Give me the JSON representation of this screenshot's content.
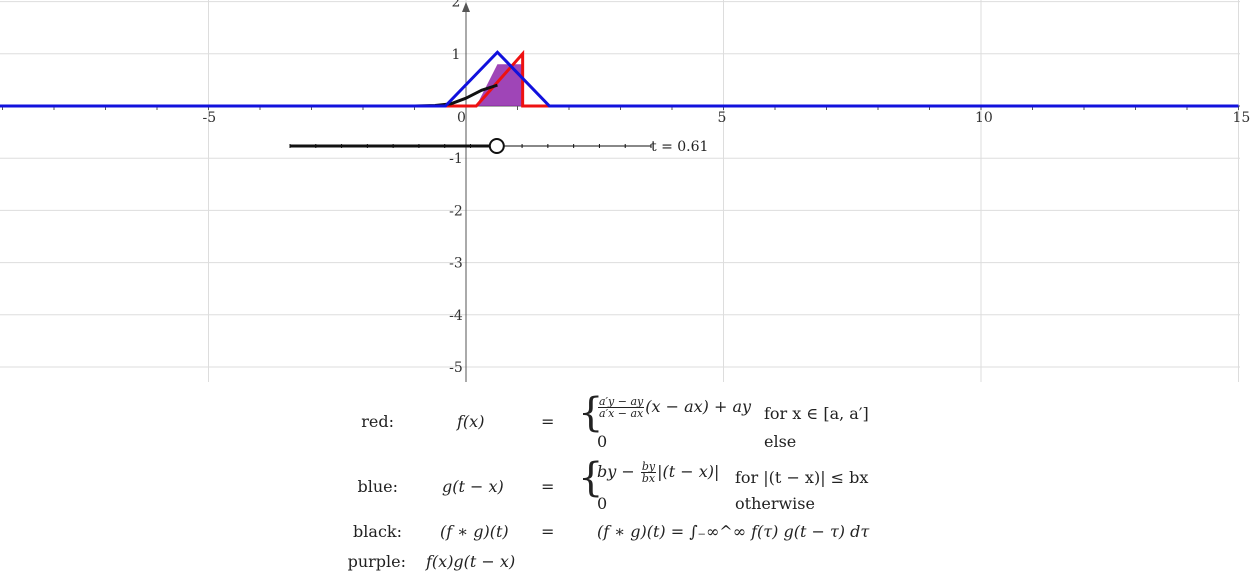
{
  "graph": {
    "x_ticks": [
      "-5",
      "0",
      "5",
      "10",
      "15"
    ],
    "y_ticks": [
      "2",
      "1",
      "-1",
      "-2",
      "-3",
      "-4",
      "-5"
    ],
    "colors": {
      "red": "#ee1111",
      "blue": "#1111dd",
      "black": "#111111",
      "purple": "#8e24aa",
      "grid": "#dddddd",
      "axis": "#555555"
    },
    "slider": {
      "label": "t = 0.61",
      "value": 0.61,
      "min": -3.4,
      "max": 3.6
    }
  },
  "chart_data": {
    "type": "line",
    "x_range": [
      -9.1,
      15
    ],
    "y_range": [
      -5,
      2.1
    ],
    "series": [
      {
        "name": "red",
        "color": "#ee1111",
        "x": [
          -9.1,
          0.2,
          1.1,
          1.1,
          15
        ],
        "y": [
          0,
          0,
          1,
          0,
          0
        ]
      },
      {
        "name": "blue",
        "color": "#1111dd",
        "x": [
          -9.1,
          -0.4,
          0.61,
          1.62,
          15
        ],
        "y": [
          0,
          0,
          1.03,
          0,
          0
        ]
      },
      {
        "name": "black",
        "color": "#111111",
        "x": [
          -9.1,
          -1.0,
          -0.6,
          -0.3,
          0.0,
          0.3,
          0.61
        ],
        "y": [
          0,
          0,
          0.01,
          0.04,
          0.15,
          0.3,
          0.4
        ]
      },
      {
        "name": "purple",
        "color": "#8e24aa",
        "x": [
          0.2,
          0.61,
          1.1,
          1.1
        ],
        "y": [
          0,
          0.8,
          0.8,
          0
        ]
      }
    ]
  },
  "legend": {
    "red_label": "red:",
    "blue_label": "blue:",
    "black_label": "black:",
    "purple_label": "purple:",
    "red_fn": "f(x)",
    "blue_fn": "g(t − x)",
    "black_fn": "(f ∗ g)(t)",
    "purple_fn": "f(x)g(t − x)",
    "equals": "=",
    "red_case1_num": "a′y − ay",
    "red_case1_den": "a′x − ax",
    "red_case1_rest": "(x − ax) + ay",
    "red_case1_cond": "for x ∈ [a, a′]",
    "red_case2_expr": "0",
    "red_case2_cond": "else",
    "blue_case1_pre": "by −",
    "blue_case1_num": "by",
    "blue_case1_den": "bx",
    "blue_case1_rest": "|(t − x)|",
    "blue_case1_cond": "for |(t − x)| ≤ bx",
    "blue_case2_expr": "0",
    "blue_case2_cond": "otherwise",
    "black_rhs": "(f ∗ g)(t) = ∫₋∞^∞ f(τ) g(t − τ) dτ"
  }
}
